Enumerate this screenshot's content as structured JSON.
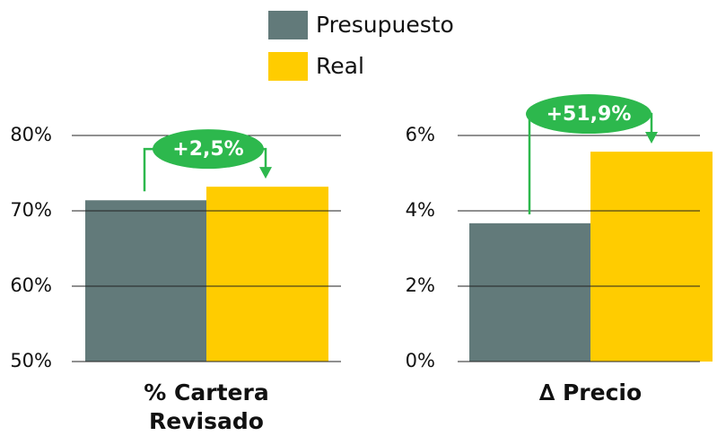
{
  "chart_data": [
    {
      "type": "bar",
      "categories": [
        "% Cartera Revisado"
      ],
      "series": [
        {
          "name": "Presupuesto",
          "color": "#627a7a",
          "values": [
            71.4
          ]
        },
        {
          "name": "Real",
          "color": "#ffcc00",
          "values": [
            73.2
          ]
        }
      ],
      "ylim": [
        50,
        80
      ],
      "yticks": [
        {
          "value": 50,
          "label": "50%"
        },
        {
          "value": 60,
          "label": "60%"
        },
        {
          "value": 70,
          "label": "70%"
        },
        {
          "value": 80,
          "label": "80%"
        }
      ],
      "grid": true,
      "annotation": "+2,5%",
      "annotation_color": "#2db84d"
    },
    {
      "type": "bar",
      "categories": [
        "∆ Precio"
      ],
      "series": [
        {
          "color": "#627a7a",
          "values": [
            3.67
          ]
        },
        {
          "color": "#ffcc00",
          "values": [
            5.57
          ]
        }
      ],
      "ylim": [
        0,
        6
      ],
      "yticks": [
        {
          "value": 0,
          "label": "0%"
        },
        {
          "value": 2,
          "label": "2%"
        },
        {
          "value": 4,
          "label": "4%"
        },
        {
          "value": 6,
          "label": "6%"
        }
      ],
      "grid": true,
      "annotation": "+51,9%",
      "annotation_color": "#2db84d"
    }
  ]
}
